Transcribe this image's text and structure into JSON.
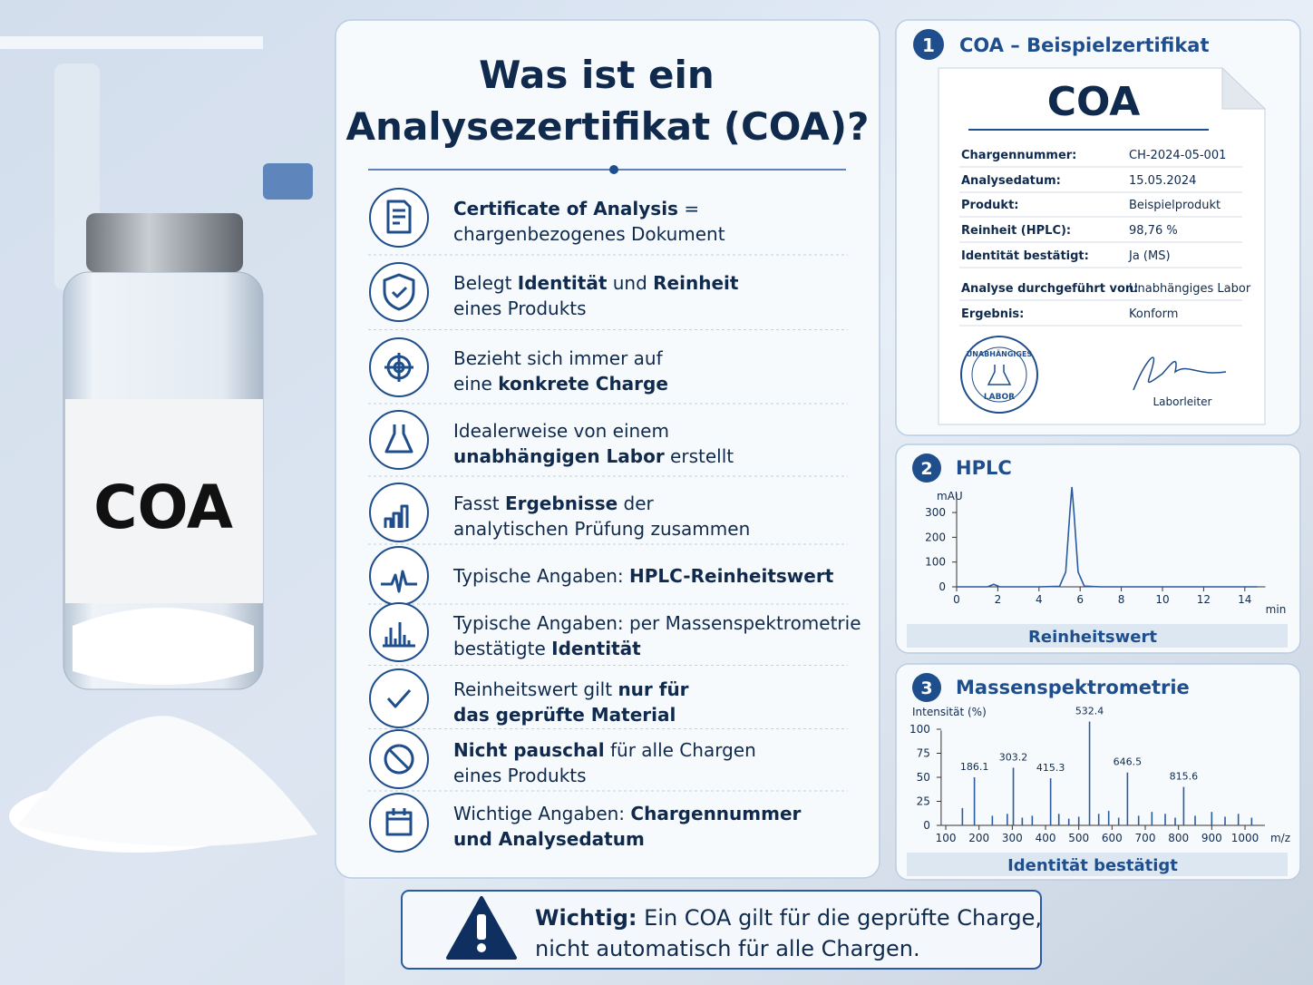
{
  "photo": {
    "label": "COA"
  },
  "main": {
    "title_lines": [
      "Was ist ein",
      "Analysezertifikat (COA)?"
    ],
    "items": [
      {
        "lines": [
          [
            {
              "text": "Certificate of Analysis",
              "bold": true
            },
            {
              "text": " ="
            }
          ],
          [
            {
              "text": "chargenbezogenes Dokument"
            }
          ]
        ]
      },
      {
        "lines": [
          [
            {
              "text": "Belegt "
            },
            {
              "text": "Identität",
              "bold": true
            },
            {
              "text": " und "
            },
            {
              "text": "Reinheit",
              "bold": true
            }
          ],
          [
            {
              "text": "eines Produkts"
            }
          ]
        ]
      },
      {
        "lines": [
          [
            {
              "text": "Bezieht sich immer auf"
            }
          ],
          [
            {
              "text": "eine "
            },
            {
              "text": "konkrete Charge",
              "bold": true
            }
          ]
        ]
      },
      {
        "lines": [
          [
            {
              "text": "Idealerweise von einem"
            }
          ],
          [
            {
              "text": "unabhängigen Labor",
              "bold": true
            },
            {
              "text": " erstellt"
            }
          ]
        ]
      },
      {
        "lines": [
          [
            {
              "text": "Fasst "
            },
            {
              "text": "Ergebnisse",
              "bold": true
            },
            {
              "text": " der"
            }
          ],
          [
            {
              "text": "analytischen Prüfung zusammen"
            }
          ]
        ]
      },
      {
        "lines": [
          [
            {
              "text": "Typische Angaben: "
            },
            {
              "text": "HPLC-Reinheitswert",
              "bold": true
            }
          ]
        ]
      },
      {
        "lines": [
          [
            {
              "text": "Typische Angaben: per Massenspektrometrie"
            }
          ],
          [
            {
              "text": "bestätigte "
            },
            {
              "text": "Identität",
              "bold": true
            }
          ]
        ]
      },
      {
        "lines": [
          [
            {
              "text": "Reinheitswert gilt "
            },
            {
              "text": "nur für",
              "bold": true
            }
          ],
          [
            {
              "text": "das geprüfte Material",
              "bold": true
            }
          ]
        ]
      },
      {
        "lines": [
          [
            {
              "text": "Nicht pauschal",
              "bold": true
            },
            {
              "text": " für alle Chargen"
            }
          ],
          [
            {
              "text": "eines Produkts"
            }
          ]
        ]
      },
      {
        "lines": [
          [
            {
              "text": "Wichtige Angaben: "
            },
            {
              "text": "Chargennummer",
              "bold": true
            }
          ],
          [
            {
              "text": "und Analysedatum",
              "bold": true
            }
          ]
        ]
      }
    ]
  },
  "certificate": {
    "number": "1",
    "title": "COA – Beispielzertifikat",
    "heading": "COA",
    "fields": [
      {
        "label": "Chargennummer:",
        "value": "CH-2024-05-001"
      },
      {
        "label": "Analysedatum:",
        "value": "15.05.2024"
      },
      {
        "label": "Produkt:",
        "value": "Beispielprodukt"
      },
      {
        "label": "Reinheit (HPLC):",
        "value": "98,76 %"
      },
      {
        "label": "Identität bestätigt:",
        "value": "Ja (MS)"
      },
      {
        "label": "Analyse durchgeführt von:",
        "value": "Unabhängiges Labor"
      },
      {
        "label": "Ergebnis:",
        "value": "Konform"
      }
    ],
    "stamp_top": "UNABHÄNGIGES",
    "stamp_bottom": "LABOR",
    "signature": "Laborleiter"
  },
  "chart_data": [
    {
      "type": "line",
      "number": "2",
      "title": "HPLC",
      "caption": "Reinheitswert",
      "y_label": "mAU",
      "x_label": "min",
      "x": [
        0,
        1.5,
        1.8,
        2.1,
        3,
        4,
        5,
        5.3,
        5.5,
        5.6,
        5.7,
        5.9,
        6.2,
        7,
        10,
        14.6
      ],
      "values": [
        0,
        0,
        10,
        0,
        0,
        0,
        2,
        60,
        300,
        403,
        300,
        60,
        3,
        0,
        0,
        0
      ],
      "color": "#2a5aa0",
      "xlim": [
        0,
        15
      ],
      "ylim": [
        0,
        420
      ],
      "xticks": [
        0,
        2,
        4,
        6,
        8,
        10,
        12,
        14
      ],
      "yticks": [
        0,
        100,
        200,
        300
      ]
    },
    {
      "type": "stem",
      "number": "3",
      "title": "Massenspektrometrie",
      "caption": "Identität bestätigt",
      "y_label": "Intensität (%)",
      "x_label": "m/z",
      "series": [
        {
          "x": [
            186.1,
            303.2,
            415.3,
            532.4,
            646.5,
            815.6
          ],
          "values": [
            50,
            60,
            49,
            108,
            55,
            40
          ],
          "color": "#2a5aa0",
          "show_labels": true
        },
        {
          "x": [
            150,
            240,
            285,
            330,
            360,
            440,
            470,
            500,
            560,
            590,
            620,
            680,
            720,
            760,
            790,
            850,
            900,
            940,
            980,
            1020
          ],
          "values": [
            18,
            10,
            12,
            8,
            10,
            12,
            7,
            9,
            12,
            15,
            8,
            10,
            14,
            12,
            8,
            10,
            14,
            9,
            12,
            8
          ],
          "color": "#2a5aa0"
        }
      ],
      "xlim": [
        86,
        1060
      ],
      "ylim": [
        0,
        110
      ],
      "xticks": [
        100,
        200,
        300,
        400,
        500,
        600,
        700,
        800,
        900,
        1000
      ],
      "yticks": [
        0,
        25,
        50,
        75,
        100
      ]
    }
  ],
  "warning": {
    "lines": [
      [
        {
          "text": "Wichtig:",
          "bold": true
        },
        {
          "text": " Ein COA gilt für die geprüfte Charge,"
        }
      ],
      [
        {
          "text": "nicht automatisch für alle Chargen."
        }
      ]
    ]
  }
}
